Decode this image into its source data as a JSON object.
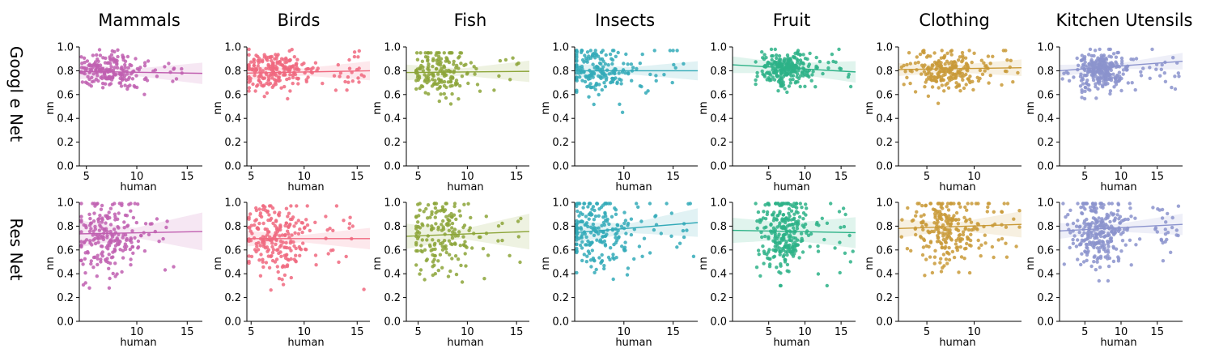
{
  "figure": {
    "col_titles": [
      "Mammals",
      "Birds",
      "Fish",
      "Insects",
      "Fruit",
      "Clothing",
      "Kitchen Utensils"
    ],
    "row_titles": [
      "Googl e Net",
      "Res Net"
    ],
    "colors": [
      "#c05fb0",
      "#f0687f",
      "#8ca538",
      "#33aab8",
      "#2db287",
      "#c99a38",
      "#8b93cd"
    ]
  },
  "chart_data": [
    {
      "type": "scatter",
      "title": "Mammals",
      "row": "Googl e Net",
      "xlabel": "human",
      "ylabel": "nn",
      "xlim": [
        4.3,
        16.5
      ],
      "ylim": [
        0,
        1
      ],
      "xticks": [
        5,
        10,
        15
      ],
      "yticks": [
        0.0,
        0.2,
        0.4,
        0.6,
        0.8,
        1.0
      ],
      "regression": {
        "y_start": 0.795,
        "y_end": 0.778
      },
      "band": [
        0.03,
        0.06
      ],
      "x_range": [
        4.5,
        14.5
      ],
      "y_mean": 0.8,
      "y_spread": 0.07,
      "y_range": [
        0.58,
        0.98
      ],
      "n_points": 200,
      "seed": 11,
      "color": "#c05fb0"
    },
    {
      "type": "scatter",
      "title": "Birds",
      "row": "Googl e Net",
      "xlabel": "human",
      "ylabel": "nn",
      "xlim": [
        4.6,
        16.2
      ],
      "ylim": [
        0,
        1
      ],
      "xticks": [
        5,
        10,
        15
      ],
      "yticks": [
        0.0,
        0.2,
        0.4,
        0.6,
        0.8,
        1.0
      ],
      "regression": {
        "y_start": 0.78,
        "y_end": 0.8
      },
      "band": [
        0.03,
        0.05
      ],
      "x_range": [
        4.8,
        15.8
      ],
      "y_mean": 0.8,
      "y_spread": 0.08,
      "y_range": [
        0.55,
        0.98
      ],
      "n_points": 230,
      "seed": 23,
      "color": "#f0687f"
    },
    {
      "type": "scatter",
      "title": "Fish",
      "row": "Googl e Net",
      "xlabel": "human",
      "ylabel": "nn",
      "xlim": [
        3.8,
        16.3
      ],
      "ylim": [
        0,
        1
      ],
      "xticks": [
        5,
        10,
        15
      ],
      "yticks": [
        0.0,
        0.2,
        0.4,
        0.6,
        0.8,
        1.0
      ],
      "regression": {
        "y_start": 0.785,
        "y_end": 0.795
      },
      "band": [
        0.03,
        0.06
      ],
      "x_range": [
        4.8,
        15.5
      ],
      "y_mean": 0.79,
      "y_spread": 0.1,
      "y_range": [
        0.38,
        0.95
      ],
      "n_points": 170,
      "seed": 37,
      "color": "#8ca538"
    },
    {
      "type": "scatter",
      "title": "Insects",
      "row": "Googl e Net",
      "xlabel": "human",
      "ylabel": "nn",
      "xlim": [
        5.0,
        17.5
      ],
      "ylim": [
        0,
        1
      ],
      "xticks": [
        10,
        15
      ],
      "yticks": [
        0.0,
        0.2,
        0.4,
        0.6,
        0.8,
        1.0
      ],
      "regression": {
        "y_start": 0.8,
        "y_end": 0.8
      },
      "band": [
        0.03,
        0.05
      ],
      "x_range": [
        5.2,
        17.2
      ],
      "y_mean": 0.8,
      "y_spread": 0.11,
      "y_range": [
        0.45,
        0.97
      ],
      "n_points": 190,
      "seed": 41,
      "color": "#33aab8"
    },
    {
      "type": "scatter",
      "title": "Fruit",
      "row": "Googl e Net",
      "xlabel": "human",
      "ylabel": "nn",
      "xlim": [
        0,
        17.0
      ],
      "ylim": [
        0,
        1
      ],
      "xticks": [
        5,
        10,
        15
      ],
      "yticks": [
        0.0,
        0.2,
        0.4,
        0.6,
        0.8,
        1.0
      ],
      "regression": {
        "y_start": 0.85,
        "y_end": 0.79
      },
      "band": [
        0.04,
        0.05
      ],
      "x_range": [
        3.2,
        16.8
      ],
      "y_mean": 0.82,
      "y_spread": 0.07,
      "y_range": [
        0.62,
        0.98
      ],
      "n_points": 260,
      "seed": 53,
      "color": "#2db287"
    },
    {
      "type": "scatter",
      "title": "Clothing",
      "row": "Googl e Net",
      "xlabel": "human",
      "ylabel": "nn",
      "xlim": [
        2.0,
        15.0
      ],
      "ylim": [
        0,
        1
      ],
      "xticks": [
        5,
        10
      ],
      "yticks": [
        0.0,
        0.2,
        0.4,
        0.6,
        0.8,
        1.0
      ],
      "regression": {
        "y_start": 0.81,
        "y_end": 0.825
      },
      "band": [
        0.03,
        0.04
      ],
      "x_range": [
        2.2,
        14.8
      ],
      "y_mean": 0.81,
      "y_spread": 0.08,
      "y_range": [
        0.52,
        0.97
      ],
      "n_points": 230,
      "seed": 67,
      "color": "#c99a38"
    },
    {
      "type": "scatter",
      "title": "Kitchen Utensils",
      "row": "Googl e Net",
      "xlabel": "human",
      "ylabel": "nn",
      "xlim": [
        1.5,
        18.5
      ],
      "ylim": [
        0,
        1
      ],
      "xticks": [
        5,
        10,
        15
      ],
      "yticks": [
        0.0,
        0.2,
        0.4,
        0.6,
        0.8,
        1.0
      ],
      "regression": {
        "y_start": 0.8,
        "y_end": 0.88
      },
      "band": [
        0.02,
        0.05
      ],
      "x_range": [
        1.6,
        18.0
      ],
      "y_mean": 0.8,
      "y_spread": 0.08,
      "y_range": [
        0.52,
        0.98
      ],
      "n_points": 300,
      "seed": 79,
      "color": "#8b93cd"
    },
    {
      "type": "scatter",
      "title": "Mammals",
      "row": "Res Net",
      "xlabel": "human",
      "ylabel": "nn",
      "xlim": [
        4.3,
        16.5
      ],
      "ylim": [
        0,
        1
      ],
      "xticks": [
        10,
        15
      ],
      "yticks": [
        0.0,
        0.2,
        0.4,
        0.6,
        0.8,
        1.0
      ],
      "regression": {
        "y_start": 0.735,
        "y_end": 0.755
      },
      "band": [
        0.04,
        0.12
      ],
      "x_range": [
        4.5,
        14.5
      ],
      "y_mean": 0.72,
      "y_spread": 0.17,
      "y_range": [
        0.28,
        0.99
      ],
      "n_points": 220,
      "seed": 83,
      "color": "#c05fb0"
    },
    {
      "type": "scatter",
      "title": "Birds",
      "row": "Res Net",
      "xlabel": "human",
      "ylabel": "nn",
      "xlim": [
        4.6,
        16.2
      ],
      "ylim": [
        0,
        1
      ],
      "xticks": [
        5,
        10,
        15
      ],
      "yticks": [
        0.0,
        0.2,
        0.4,
        0.6,
        0.8,
        1.0
      ],
      "regression": {
        "y_start": 0.695,
        "y_end": 0.695
      },
      "band": [
        0.03,
        0.06
      ],
      "x_range": [
        4.8,
        15.8
      ],
      "y_mean": 0.68,
      "y_spread": 0.16,
      "y_range": [
        0.24,
        0.97
      ],
      "n_points": 230,
      "seed": 97,
      "color": "#f0687f"
    },
    {
      "type": "scatter",
      "title": "Fish",
      "row": "Res Net",
      "xlabel": "human",
      "ylabel": "nn",
      "xlim": [
        3.8,
        16.3
      ],
      "ylim": [
        0,
        1
      ],
      "xticks": [
        5,
        10,
        15
      ],
      "yticks": [
        0.0,
        0.2,
        0.4,
        0.6,
        0.8,
        1.0
      ],
      "regression": {
        "y_start": 0.715,
        "y_end": 0.755
      },
      "band": [
        0.04,
        0.11
      ],
      "x_range": [
        4.8,
        15.5
      ],
      "y_mean": 0.72,
      "y_spread": 0.17,
      "y_range": [
        0.33,
        0.99
      ],
      "n_points": 180,
      "seed": 101,
      "color": "#8ca538"
    },
    {
      "type": "scatter",
      "title": "Insects",
      "row": "Res Net",
      "xlabel": "human",
      "ylabel": "nn",
      "xlim": [
        5.0,
        17.5
      ],
      "ylim": [
        0,
        1
      ],
      "xticks": [
        10,
        15
      ],
      "yticks": [
        0.0,
        0.2,
        0.4,
        0.6,
        0.8,
        1.0
      ],
      "regression": {
        "y_start": 0.745,
        "y_end": 0.83
      },
      "band": [
        0.04,
        0.08
      ],
      "x_range": [
        5.2,
        17.2
      ],
      "y_mean": 0.75,
      "y_spread": 0.16,
      "y_range": [
        0.28,
        0.99
      ],
      "n_points": 230,
      "seed": 113,
      "color": "#33aab8"
    },
    {
      "type": "scatter",
      "title": "Fruit",
      "row": "Res Net",
      "xlabel": "human",
      "ylabel": "nn",
      "xlim": [
        0,
        17.0
      ],
      "ylim": [
        0,
        1
      ],
      "xticks": [
        5,
        10,
        15
      ],
      "yticks": [
        0.0,
        0.2,
        0.4,
        0.6,
        0.8,
        1.0
      ],
      "regression": {
        "y_start": 0.765,
        "y_end": 0.745
      },
      "band": [
        0.07,
        0.06
      ],
      "x_range": [
        3.2,
        16.8
      ],
      "y_mean": 0.74,
      "y_spread": 0.17,
      "y_range": [
        0.3,
        0.99
      ],
      "n_points": 280,
      "seed": 127,
      "color": "#2db287"
    },
    {
      "type": "scatter",
      "title": "Clothing",
      "row": "Res Net",
      "xlabel": "human",
      "ylabel": "nn",
      "xlim": [
        2.0,
        15.0
      ],
      "ylim": [
        0,
        1
      ],
      "xticks": [
        5,
        10
      ],
      "yticks": [
        0.0,
        0.2,
        0.4,
        0.6,
        0.8,
        1.0
      ],
      "regression": {
        "y_start": 0.78,
        "y_end": 0.815
      },
      "band": [
        0.03,
        0.08
      ],
      "x_range": [
        2.2,
        14.8
      ],
      "y_mean": 0.77,
      "y_spread": 0.15,
      "y_range": [
        0.38,
        0.99
      ],
      "n_points": 250,
      "seed": 131,
      "color": "#c99a38"
    },
    {
      "type": "scatter",
      "title": "Kitchen Utensils",
      "row": "Res Net",
      "xlabel": "human",
      "ylabel": "nn",
      "xlim": [
        1.5,
        18.5
      ],
      "ylim": [
        0,
        1
      ],
      "xticks": [
        5,
        10,
        15
      ],
      "yticks": [
        0.0,
        0.2,
        0.4,
        0.6,
        0.8,
        1.0
      ],
      "regression": {
        "y_start": 0.76,
        "y_end": 0.815
      },
      "band": [
        0.03,
        0.06
      ],
      "x_range": [
        1.6,
        18.0
      ],
      "y_mean": 0.76,
      "y_spread": 0.15,
      "y_range": [
        0.34,
        0.99
      ],
      "n_points": 300,
      "seed": 149,
      "color": "#8b93cd"
    }
  ]
}
